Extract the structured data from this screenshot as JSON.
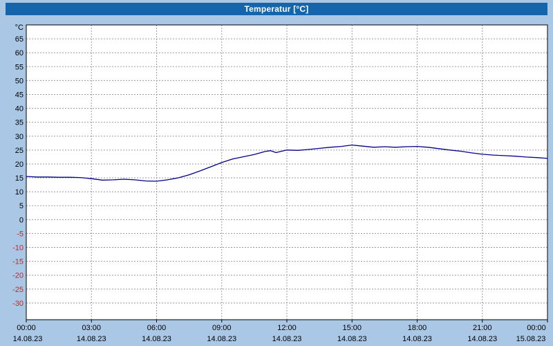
{
  "window": {
    "title": "Temperatur [°C]"
  },
  "colors": {
    "titlebar_bg": "#1565ad",
    "titlebar_text": "#ffffff",
    "page_bg": "#abc7e6",
    "plot_bg": "#ffffff",
    "grid": "#9b9b9b",
    "axis": "#000000",
    "line": "#00008b",
    "tick_positive": "#000000",
    "tick_negative": "#cc2222"
  },
  "chart_data": {
    "type": "line",
    "title": "Temperatur [°C]",
    "ylabel": "°C",
    "xlabel": "",
    "grid": true,
    "legend": "none",
    "ylim": [
      -36,
      70
    ],
    "ytick_min": -30,
    "ytick_max": 65,
    "ytick_step": 5,
    "xlim_hours": [
      0,
      24
    ],
    "xtick_hours": [
      0,
      3,
      6,
      9,
      12,
      15,
      18,
      21,
      24
    ],
    "xtick_times": [
      "00:00",
      "03:00",
      "06:00",
      "09:00",
      "12:00",
      "15:00",
      "18:00",
      "21:00",
      "00:00"
    ],
    "xtick_dates": [
      "14.08.23",
      "14.08.23",
      "14.08.23",
      "14.08.23",
      "14.08.23",
      "14.08.23",
      "14.08.23",
      "14.08.23",
      "15.08.23"
    ],
    "series": [
      {
        "name": "Temperatur",
        "x_hours": [
          0,
          0.5,
          1,
          1.5,
          2,
          2.5,
          3,
          3.5,
          4,
          4.5,
          5,
          5.5,
          6,
          6.5,
          7,
          7.5,
          8,
          8.5,
          9,
          9.5,
          10,
          10.5,
          11,
          11.25,
          11.5,
          12,
          12.5,
          13,
          13.5,
          14,
          14.5,
          15,
          15.5,
          16,
          16.5,
          17,
          17.5,
          18,
          18.5,
          19,
          19.5,
          20,
          20.5,
          21,
          21.5,
          22,
          22.5,
          23,
          23.5,
          24
        ],
        "values": [
          15.5,
          15.3,
          15.3,
          15.2,
          15.2,
          15.1,
          14.7,
          14.2,
          14.3,
          14.5,
          14.3,
          13.9,
          13.8,
          14.3,
          15.0,
          16.1,
          17.5,
          19.0,
          20.5,
          21.8,
          22.6,
          23.4,
          24.5,
          24.8,
          24.1,
          25.0,
          24.9,
          25.2,
          25.6,
          26.0,
          26.3,
          26.8,
          26.4,
          26.0,
          26.2,
          26.0,
          26.2,
          26.3,
          26.0,
          25.5,
          25.0,
          24.6,
          24.0,
          23.5,
          23.2,
          23.0,
          22.8,
          22.5,
          22.3,
          22.0
        ]
      }
    ]
  }
}
